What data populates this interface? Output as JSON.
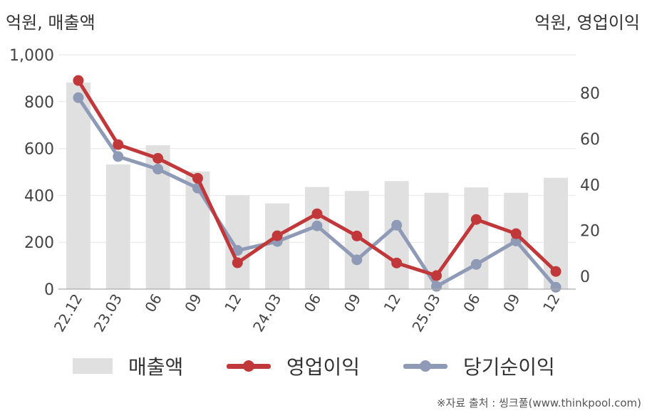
{
  "units": {
    "left": "억원, 매출액",
    "right": "억원, 영업이익"
  },
  "chart_data": {
    "type": "bar",
    "categories": [
      "22.12",
      "23.03",
      "06",
      "09",
      "12",
      "24.03",
      "06",
      "09",
      "12",
      "25.03",
      "06",
      "09",
      "12"
    ],
    "series": [
      {
        "name": "매출액",
        "type": "bar",
        "axis": "left",
        "color": "#e0e0e0",
        "values": [
          882,
          532,
          614,
          502,
          400,
          366,
          436,
          419,
          461,
          411,
          434,
          411,
          475
        ]
      },
      {
        "name": "영업이익",
        "type": "line",
        "axis": "right",
        "color": "#c0383a",
        "values": [
          85.5,
          57.5,
          51.5,
          42.8,
          5.9,
          17.7,
          27.3,
          17.6,
          5.8,
          0.3,
          24.8,
          18.6,
          2.1
        ]
      },
      {
        "name": "당기순이익",
        "type": "line",
        "axis": "right",
        "color": "#8f9ab6",
        "values": [
          78.0,
          52.3,
          46.8,
          38.5,
          11.3,
          15.2,
          22.0,
          7.2,
          22.3,
          -4.4,
          5.2,
          15.4,
          -4.8
        ]
      }
    ],
    "y_left": {
      "ticks": [
        "0",
        "200",
        "400",
        "600",
        "800",
        "1,000"
      ],
      "range": [
        0,
        1000
      ]
    },
    "y_right": {
      "ticks": [
        "0",
        "20",
        "40",
        "60",
        "80"
      ],
      "range": [
        -5.6,
        96.7
      ]
    },
    "grid": true,
    "legend_position": "bottom"
  },
  "source": "※자료 출처 : 씽크풀(www.thinkpool.com)"
}
